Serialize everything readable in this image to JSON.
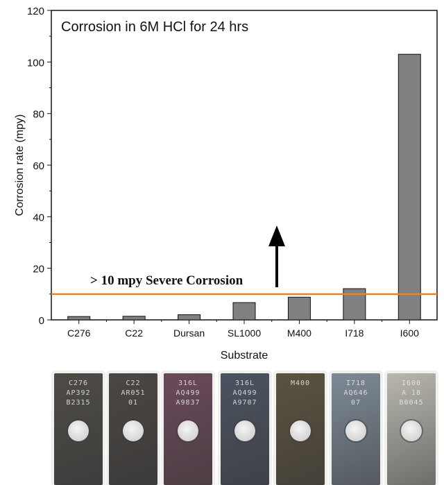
{
  "chart_data": {
    "type": "bar",
    "title": "Corrosion in 6M HCl for 24 hrs",
    "xlabel": "Substrate",
    "ylabel": "Corrosion rate (mpy)",
    "categories": [
      "C276",
      "C22",
      "Dursan",
      "SL1000",
      "M400",
      "I718",
      "I600"
    ],
    "values": [
      1.3,
      1.4,
      2.0,
      6.7,
      8.8,
      12.1,
      103
    ],
    "ylim": [
      0,
      120
    ],
    "yticks": [
      0,
      20,
      40,
      60,
      80,
      100,
      120
    ],
    "grid": false,
    "bar_color": "#808080",
    "threshold": {
      "value": 10,
      "color": "#e8832a",
      "label": "> 10 mpy Severe Corrosion"
    },
    "annotation_arrow": "up"
  },
  "plates": [
    {
      "lines": [
        "C276",
        "AP392",
        "B2315"
      ],
      "color": "#4e4b47"
    },
    {
      "lines": [
        "C22",
        "AR051",
        "01"
      ],
      "color": "#4a4643"
    },
    {
      "lines": [
        "316L",
        "AQ499",
        "A9837"
      ],
      "color": "#6b4a5a"
    },
    {
      "lines": [
        "316L",
        "AQ499",
        "A9707"
      ],
      "color": "#4c5360"
    },
    {
      "lines": [
        "M400",
        "",
        ""
      ],
      "color": "#5b5240"
    },
    {
      "lines": [
        "I718",
        "AQ646",
        "07"
      ],
      "color": "#7e8a96"
    },
    {
      "lines": [
        "I600",
        "A 18",
        "B0045"
      ],
      "color": "#b8b6ae"
    }
  ]
}
